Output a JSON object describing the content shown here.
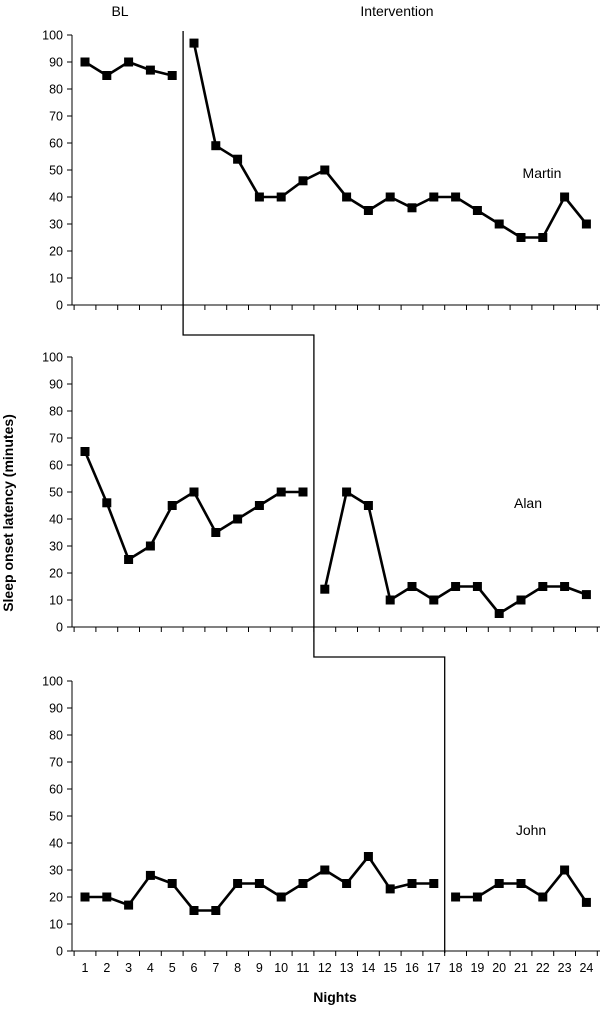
{
  "chart_data": {
    "type": "line",
    "phases": [
      "BL",
      "Intervention"
    ],
    "xlabel": "Nights",
    "ylabel": "Sleep onset latency (minutes)",
    "x": [
      1,
      2,
      3,
      4,
      5,
      6,
      7,
      8,
      9,
      10,
      11,
      12,
      13,
      14,
      15,
      16,
      17,
      18,
      19,
      20,
      21,
      22,
      23,
      24
    ],
    "ylim": [
      0,
      100
    ],
    "yticks": [
      0,
      10,
      20,
      30,
      40,
      50,
      60,
      70,
      80,
      90,
      100
    ],
    "grid": false,
    "legend": "none",
    "line_color": "#000000",
    "panels": [
      {
        "participant": "Martin",
        "baseline_end": 5,
        "segments": [
          {
            "x": [
              1,
              2,
              3,
              4,
              5
            ],
            "y": [
              90,
              85,
              90,
              87,
              85
            ]
          },
          {
            "x": [
              6,
              7,
              8,
              9,
              10,
              11,
              12,
              13,
              14,
              15,
              16,
              17,
              18,
              19,
              20,
              21,
              22,
              23,
              24
            ],
            "y": [
              97,
              59,
              54,
              40,
              40,
              46,
              50,
              40,
              35,
              40,
              36,
              40,
              40,
              35,
              30,
              25,
              25,
              40,
              30
            ]
          }
        ]
      },
      {
        "participant": "Alan",
        "baseline_end": 11,
        "segments": [
          {
            "x": [
              1,
              2,
              3,
              4,
              5,
              6,
              7,
              8,
              9,
              10,
              11
            ],
            "y": [
              65,
              46,
              25,
              30,
              45,
              50,
              35,
              40,
              45,
              50,
              50
            ]
          },
          {
            "x": [
              12,
              13,
              14,
              15,
              16,
              17,
              18,
              19,
              20,
              21,
              22,
              23,
              24
            ],
            "y": [
              14,
              50,
              45,
              10,
              15,
              10,
              15,
              15,
              5,
              10,
              15,
              15,
              12
            ]
          }
        ]
      },
      {
        "participant": "John",
        "baseline_end": 17,
        "segments": [
          {
            "x": [
              1,
              2,
              3,
              4,
              5,
              6,
              7,
              8,
              9,
              10,
              11,
              12,
              13,
              14,
              15,
              16,
              17
            ],
            "y": [
              20,
              20,
              17,
              28,
              25,
              15,
              15,
              25,
              25,
              20,
              25,
              30,
              25,
              35,
              23,
              25,
              25
            ]
          },
          {
            "x": [
              18,
              19,
              20,
              21,
              22,
              23,
              24
            ],
            "y": [
              20,
              20,
              25,
              25,
              20,
              30,
              18
            ]
          }
        ]
      }
    ]
  }
}
